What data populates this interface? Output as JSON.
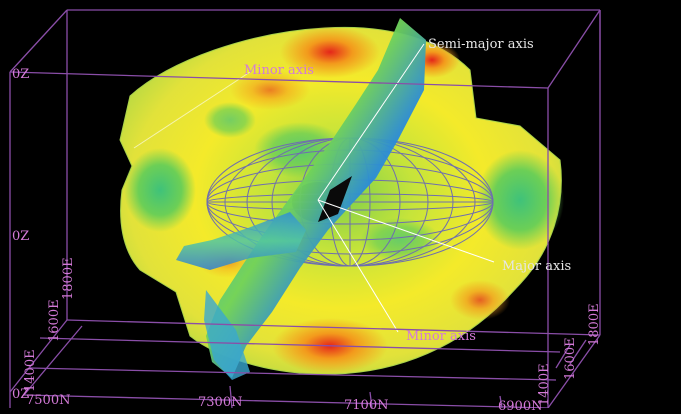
{
  "scene": {
    "background": "#000000",
    "box_color": "#8a4ea8",
    "axis_color": "#ffffff",
    "wireframe_color": "#6f6fae",
    "surface_colors": [
      "#2a6fd0",
      "#20b8c8",
      "#5cd06a",
      "#c4e43a",
      "#f6ea28",
      "#f39a1c",
      "#e4261a"
    ]
  },
  "annotations": {
    "semi_major": "Semi-major axis",
    "minor_top": "Minor axis",
    "major": "Major axis",
    "minor_bottom": "Minor axis"
  },
  "box_labels": {
    "z_top": "0Z",
    "z_mid": "0Z",
    "z_bottom": "0Z",
    "e_1400_left": "1400E",
    "e_1600_left": "1600E",
    "e_1800_left": "1800E",
    "n_7500": "7500N",
    "n_7300": "7300N",
    "n_7100": "7100N",
    "n_6900": "6900N",
    "e_1400_right": "1400E",
    "e_1600_right": "1600E",
    "e_1800_right": "1800E"
  }
}
